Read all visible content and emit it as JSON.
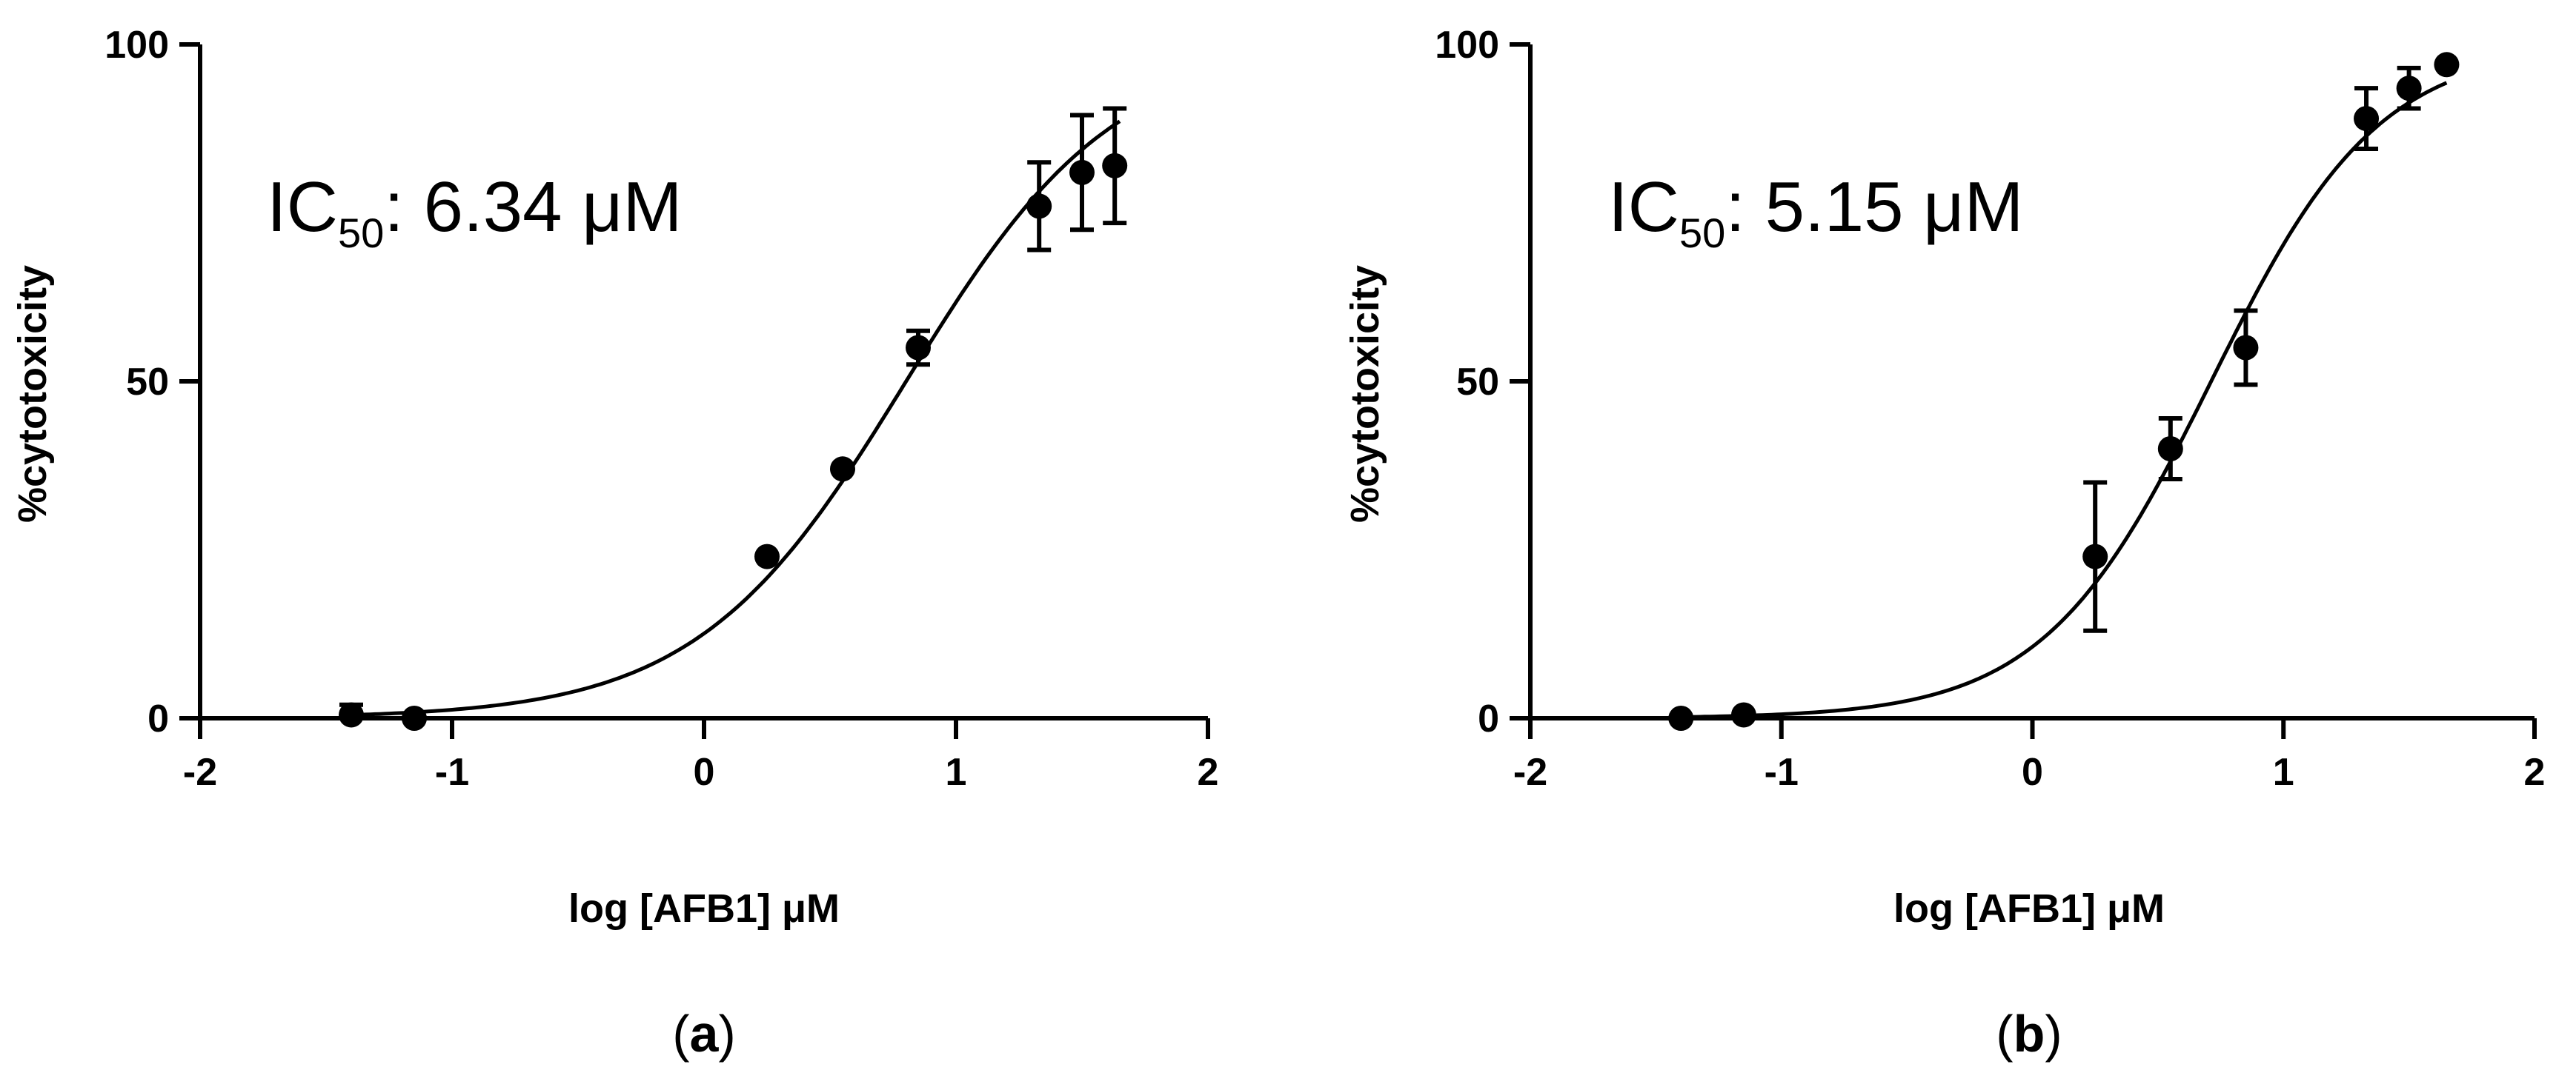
{
  "chart_data": [
    {
      "type": "scatter",
      "panel_label": "a",
      "xlabel": "log [AFB1] μM",
      "ylabel": "%cytotoxicity",
      "xlim": [
        -2,
        2
      ],
      "ylim": [
        0,
        100
      ],
      "xticks": [
        "-2",
        "-1",
        "0",
        "1",
        "2"
      ],
      "yticks": [
        "0",
        "50",
        "100"
      ],
      "annotation": {
        "prefix": "IC",
        "subscript": "50",
        "suffix": ": 6.34 μM"
      },
      "points": [
        {
          "x": -1.4,
          "y": 0.5,
          "err": 1.5
        },
        {
          "x": -1.15,
          "y": 0.0,
          "err": 0
        },
        {
          "x": 0.25,
          "y": 24,
          "err": 0
        },
        {
          "x": 0.55,
          "y": 37,
          "err": 0
        },
        {
          "x": 0.85,
          "y": 55,
          "err": 2.5
        },
        {
          "x": 1.33,
          "y": 76,
          "err": 6.5
        },
        {
          "x": 1.5,
          "y": 81,
          "err": 8.5
        },
        {
          "x": 1.63,
          "y": 82,
          "err": 8.5
        }
      ],
      "fit": {
        "model": "four-parameter logistic",
        "bottom": 0,
        "top": 100,
        "log_ic50": 0.802,
        "hill": 1.05,
        "x_range": [
          -1.4,
          1.65
        ]
      },
      "grid": false
    },
    {
      "type": "scatter",
      "panel_label": "b",
      "xlabel": "log [AFB1] μM",
      "ylabel": "%cytotoxicity",
      "xlim": [
        -2,
        2
      ],
      "ylim": [
        0,
        100
      ],
      "xticks": [
        "-2",
        "-1",
        "0",
        "1",
        "2"
      ],
      "yticks": [
        "0",
        "50",
        "100"
      ],
      "annotation": {
        "prefix": "IC",
        "subscript": "50",
        "suffix": ": 5.15 μM"
      },
      "points": [
        {
          "x": -1.4,
          "y": 0.0,
          "err": 0
        },
        {
          "x": -1.15,
          "y": 0.5,
          "err": 0
        },
        {
          "x": 0.25,
          "y": 24,
          "err": 11
        },
        {
          "x": 0.55,
          "y": 40,
          "err": 4.5
        },
        {
          "x": 0.85,
          "y": 55,
          "err": 5.5
        },
        {
          "x": 1.33,
          "y": 89,
          "err": 4.5
        },
        {
          "x": 1.5,
          "y": 93.5,
          "err": 3
        },
        {
          "x": 1.65,
          "y": 97,
          "err": 0
        }
      ],
      "fit": {
        "model": "four-parameter logistic",
        "bottom": 0,
        "top": 100,
        "log_ic50": 0.712,
        "hill": 1.3,
        "x_range": [
          -1.4,
          1.65
        ]
      },
      "grid": false
    }
  ]
}
